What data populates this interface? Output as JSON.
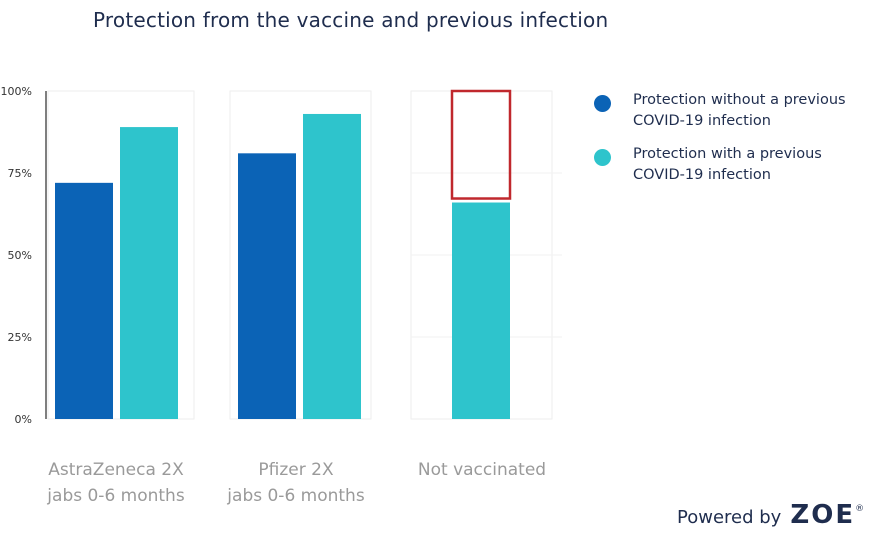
{
  "chart_data": {
    "type": "bar",
    "title": "Protection from the vaccine and previous infection",
    "categories": [
      [
        "AstraZeneca 2X",
        "jabs 0-6 months"
      ],
      [
        "Pfizer 2X",
        "jabs 0-6 months"
      ],
      [
        "Not vaccinated"
      ]
    ],
    "series": [
      {
        "name": "Protection without a previous COVID-19 infection",
        "color": "#0b63b6",
        "values": [
          72,
          81,
          null
        ]
      },
      {
        "name": "Protection with a previous COVID-19 infection",
        "color": "#2ec4cc",
        "values": [
          89,
          93,
          66
        ]
      }
    ],
    "ylim": [
      0,
      100
    ],
    "yticks": [
      "0%",
      "25%",
      "50%",
      "75%",
      "100%"
    ],
    "ytick_values": [
      0,
      25,
      50,
      75,
      100
    ],
    "grid": false,
    "legend_position": "right",
    "annotation": {
      "type": "highlight-box",
      "color": "#c0282d",
      "category_index": 2,
      "y_range": [
        66,
        100
      ]
    }
  },
  "brand": {
    "prefix": "Powered by",
    "logo": "ZOE",
    "reg": "®"
  }
}
